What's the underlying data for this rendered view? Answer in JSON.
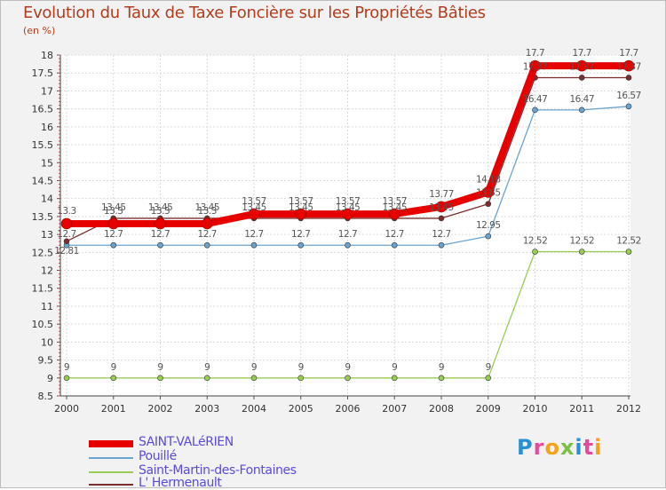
{
  "header": {
    "title": "Evolution du Taux de Taxe Foncière sur les Propriétés Bâties",
    "unit": "(en %)"
  },
  "logo": {
    "text": "Proxiti",
    "letters": [
      "P",
      "r",
      "o",
      "x",
      "i",
      "t",
      "i"
    ]
  },
  "chart_data": {
    "type": "line",
    "title": "Evolution du Taux de Taxe Foncière sur les Propriétés Bâties",
    "ylabel": "(en %)",
    "xlabel": "",
    "x": [
      "2000",
      "2001",
      "2002",
      "2003",
      "2004",
      "2005",
      "2006",
      "2007",
      "2008",
      "2009",
      "2010",
      "2011",
      "2012"
    ],
    "ylim": [
      8.5,
      18
    ],
    "yticks": [
      "8.5",
      "9",
      "9.5",
      "10",
      "10.5",
      "11",
      "11.5",
      "12",
      "12.5",
      "13",
      "13.5",
      "14",
      "14.5",
      "15",
      "15.5",
      "16",
      "16.5",
      "17",
      "17.5",
      "18"
    ],
    "series": [
      {
        "name": "SAINT-VALéRIEN",
        "color": "#e60000",
        "values": [
          13.3,
          13.3,
          13.3,
          13.3,
          13.57,
          13.57,
          13.57,
          13.57,
          13.77,
          14.18,
          17.7,
          17.7,
          17.7
        ],
        "labels": [
          "13.3",
          "13.3",
          "13.3",
          "13.3",
          "13.57",
          "13.57",
          "13.57",
          "13.57",
          "13.77",
          "14.18",
          "17.7",
          "17.7",
          "17.7"
        ]
      },
      {
        "name": "Pouillé",
        "color": "#6ba3d0",
        "values": [
          12.7,
          12.7,
          12.7,
          12.7,
          12.7,
          12.7,
          12.7,
          12.7,
          12.7,
          12.95,
          16.47,
          16.47,
          16.57
        ],
        "labels": [
          "12.7",
          "12.7",
          "12.7",
          "12.7",
          "12.7",
          "12.7",
          "12.7",
          "12.7",
          "12.7",
          "12.95",
          "16.47",
          "16.47",
          "16.57"
        ]
      },
      {
        "name": "Saint-Martin-des-Fontaines",
        "color": "#99cc55",
        "values": [
          9,
          9,
          9,
          9,
          9,
          9,
          9,
          9,
          9,
          9,
          12.52,
          12.52,
          12.52
        ],
        "labels": [
          "9",
          "9",
          "9",
          "9",
          "9",
          "9",
          "9",
          "9",
          "9",
          "9",
          "12.52",
          "12.52",
          "12.52"
        ]
      },
      {
        "name": "L' Hermenault",
        "color": "#7a2e2e",
        "values": [
          12.81,
          13.45,
          13.45,
          13.45,
          13.45,
          13.45,
          13.45,
          13.45,
          13.45,
          13.85,
          17.37,
          17.37,
          17.37
        ],
        "labels": [
          "12.81",
          "13.45",
          "13.45",
          "13.45",
          "13.45",
          "13.45",
          "13.45",
          "13.45",
          "13.45",
          "13.85",
          "17.37",
          "17.37",
          "17.37"
        ]
      }
    ]
  }
}
